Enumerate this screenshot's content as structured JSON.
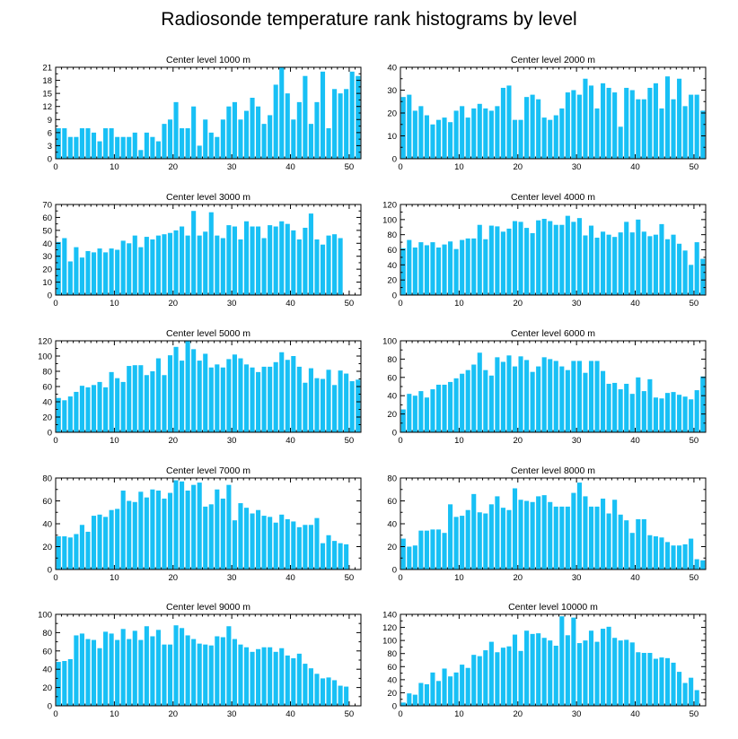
{
  "figure": {
    "title": "Radiosonde temperature rank histograms by level"
  },
  "style": {
    "bar_color": "#18C0F5",
    "axis_color": "#000000",
    "background": "#FFFFFF"
  },
  "chart_data": [
    {
      "type": "bar",
      "title": "Center level 1000 m",
      "xlim": [
        0,
        52
      ],
      "ylim": [
        0,
        21
      ],
      "xticks": [
        0,
        10,
        20,
        30,
        40,
        50
      ],
      "yticks": [
        0,
        3,
        6,
        9,
        12,
        15,
        18,
        21
      ],
      "values": [
        7,
        7,
        5,
        5,
        7,
        7,
        6,
        4,
        7,
        7,
        5,
        5,
        5,
        6,
        2,
        6,
        5,
        4,
        8,
        9,
        13,
        7,
        7,
        12,
        3,
        9,
        6,
        5,
        9,
        12,
        13,
        9,
        11,
        14,
        12,
        8,
        10,
        17,
        21,
        15,
        9,
        13,
        19,
        8,
        13,
        20,
        7,
        16,
        15,
        16,
        20,
        19
      ]
    },
    {
      "type": "bar",
      "title": "Center level 2000 m",
      "xlim": [
        0,
        52
      ],
      "ylim": [
        0,
        40
      ],
      "xticks": [
        0,
        10,
        20,
        30,
        40,
        50
      ],
      "yticks": [
        0,
        10,
        20,
        30,
        40
      ],
      "values": [
        27,
        28,
        21,
        23,
        19,
        15,
        17,
        18,
        16,
        21,
        23,
        18,
        22,
        24,
        22,
        21,
        23,
        31,
        32,
        17,
        17,
        27,
        28,
        26,
        18,
        17,
        19,
        22,
        29,
        30,
        28,
        35,
        32,
        22,
        33,
        31,
        29,
        14,
        31,
        30,
        26,
        26,
        31,
        33,
        22,
        36,
        26,
        35,
        23,
        28,
        28,
        21
      ]
    },
    {
      "type": "bar",
      "title": "Center level 3000 m",
      "xlim": [
        0,
        52
      ],
      "ylim": [
        0,
        70
      ],
      "xticks": [
        0,
        10,
        20,
        30,
        40,
        50
      ],
      "yticks": [
        0,
        10,
        20,
        30,
        40,
        50,
        60,
        70
      ],
      "values": [
        41,
        44,
        26,
        37,
        29,
        34,
        33,
        36,
        33,
        36,
        35,
        42,
        40,
        46,
        37,
        45,
        43,
        46,
        47,
        48,
        50,
        53,
        46,
        65,
        46,
        49,
        64,
        46,
        44,
        54,
        53,
        43,
        57,
        53,
        53,
        44,
        54,
        53,
        57,
        55,
        50,
        43,
        52,
        63,
        43,
        39,
        46,
        47,
        44
      ]
    },
    {
      "type": "bar",
      "title": "Center level 4000 m",
      "xlim": [
        0,
        52
      ],
      "ylim": [
        0,
        120
      ],
      "xticks": [
        0,
        10,
        20,
        30,
        40,
        50
      ],
      "yticks": [
        0,
        20,
        40,
        60,
        80,
        100,
        120
      ],
      "values": [
        62,
        73,
        63,
        70,
        66,
        70,
        63,
        67,
        71,
        61,
        73,
        75,
        75,
        93,
        74,
        92,
        91,
        84,
        88,
        98,
        97,
        89,
        82,
        99,
        101,
        98,
        93,
        93,
        105,
        97,
        102,
        79,
        92,
        76,
        84,
        80,
        77,
        83,
        97,
        83,
        100,
        84,
        78,
        80,
        94,
        74,
        80,
        68,
        59,
        40,
        70,
        48
      ]
    },
    {
      "type": "bar",
      "title": "Center level 5000 m",
      "xlim": [
        0,
        52
      ],
      "ylim": [
        0,
        120
      ],
      "xticks": [
        0,
        10,
        20,
        30,
        40,
        50
      ],
      "yticks": [
        0,
        20,
        40,
        60,
        80,
        100,
        120
      ],
      "values": [
        45,
        42,
        47,
        53,
        61,
        59,
        62,
        66,
        59,
        79,
        71,
        66,
        87,
        88,
        88,
        75,
        80,
        97,
        75,
        101,
        112,
        94,
        120,
        109,
        94,
        103,
        85,
        89,
        85,
        96,
        102,
        97,
        89,
        85,
        79,
        86,
        86,
        92,
        105,
        95,
        100,
        86,
        65,
        84,
        71,
        70,
        82,
        62,
        81,
        77,
        67,
        69
      ]
    },
    {
      "type": "bar",
      "title": "Center level 6000 m",
      "xlim": [
        0,
        52
      ],
      "ylim": [
        0,
        100
      ],
      "xticks": [
        0,
        10,
        20,
        30,
        40,
        50
      ],
      "yticks": [
        0,
        20,
        40,
        60,
        80,
        100
      ],
      "values": [
        25,
        42,
        40,
        45,
        38,
        47,
        52,
        52,
        55,
        59,
        64,
        68,
        74,
        87,
        68,
        62,
        82,
        77,
        84,
        72,
        83,
        79,
        66,
        72,
        82,
        80,
        78,
        72,
        68,
        78,
        78,
        65,
        78,
        78,
        67,
        53,
        54,
        47,
        53,
        42,
        60,
        45,
        58,
        38,
        37,
        43,
        44,
        41,
        39,
        36,
        46,
        61
      ]
    },
    {
      "type": "bar",
      "title": "Center level 7000 m",
      "xlim": [
        0,
        52
      ],
      "ylim": [
        0,
        80
      ],
      "xticks": [
        0,
        10,
        20,
        30,
        40,
        50
      ],
      "yticks": [
        0,
        20,
        40,
        60,
        80
      ],
      "values": [
        29,
        29,
        28,
        31,
        39,
        33,
        47,
        48,
        46,
        52,
        53,
        69,
        60,
        59,
        68,
        63,
        70,
        69,
        62,
        67,
        78,
        77,
        69,
        74,
        76,
        55,
        57,
        70,
        62,
        74,
        43,
        58,
        54,
        49,
        52,
        47,
        46,
        41,
        48,
        44,
        42,
        37,
        39,
        39,
        45,
        23,
        30,
        25,
        23,
        22
      ]
    },
    {
      "type": "bar",
      "title": "Center level 8000 m",
      "xlim": [
        0,
        52
      ],
      "ylim": [
        0,
        80
      ],
      "xticks": [
        0,
        10,
        20,
        30,
        40,
        50
      ],
      "yticks": [
        0,
        20,
        40,
        60,
        80
      ],
      "values": [
        27,
        20,
        21,
        34,
        34,
        35,
        35,
        32,
        57,
        46,
        47,
        52,
        66,
        50,
        49,
        57,
        64,
        54,
        52,
        71,
        61,
        60,
        59,
        64,
        65,
        59,
        55,
        55,
        55,
        67,
        76,
        64,
        55,
        55,
        62,
        49,
        61,
        48,
        43,
        32,
        44,
        44,
        30,
        29,
        28,
        24,
        21,
        21,
        22,
        27,
        9,
        8
      ]
    },
    {
      "type": "bar",
      "title": "Center level 9000 m",
      "xlim": [
        0,
        52
      ],
      "ylim": [
        0,
        100
      ],
      "xticks": [
        0,
        10,
        20,
        30,
        40,
        50
      ],
      "yticks": [
        0,
        20,
        40,
        60,
        80,
        100
      ],
      "values": [
        48,
        49,
        51,
        77,
        79,
        73,
        72,
        63,
        81,
        79,
        72,
        84,
        73,
        82,
        72,
        87,
        76,
        83,
        67,
        67,
        88,
        85,
        77,
        73,
        68,
        67,
        66,
        76,
        75,
        87,
        73,
        67,
        64,
        59,
        62,
        64,
        64,
        59,
        63,
        55,
        52,
        57,
        46,
        41,
        35,
        30,
        31,
        28,
        22,
        21
      ]
    },
    {
      "type": "bar",
      "title": "Center level 10000 m",
      "xlim": [
        0,
        52
      ],
      "ylim": [
        0,
        140
      ],
      "xticks": [
        0,
        10,
        20,
        30,
        40,
        50
      ],
      "yticks": [
        0,
        20,
        40,
        60,
        80,
        100,
        120,
        140
      ],
      "values": [
        5,
        19,
        17,
        35,
        33,
        51,
        38,
        57,
        45,
        51,
        63,
        58,
        78,
        76,
        85,
        98,
        82,
        89,
        91,
        109,
        84,
        115,
        110,
        111,
        104,
        100,
        92,
        137,
        108,
        135,
        96,
        100,
        115,
        98,
        118,
        121,
        104,
        100,
        101,
        97,
        82,
        81,
        81,
        72,
        74,
        73,
        66,
        52,
        35,
        43,
        24
      ]
    }
  ]
}
